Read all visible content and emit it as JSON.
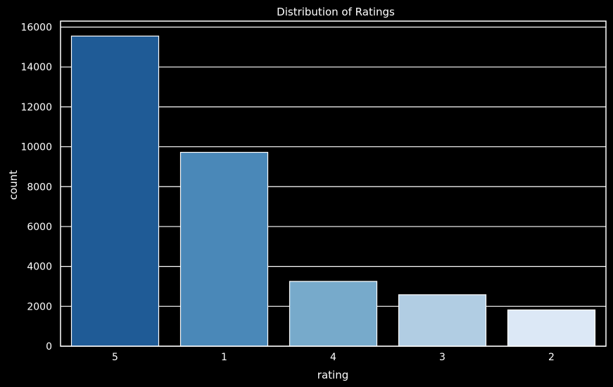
{
  "chart_data": {
    "type": "bar",
    "title": "Distribution of Ratings",
    "xlabel": "rating",
    "ylabel": "count",
    "categories": [
      "5",
      "1",
      "4",
      "3",
      "2"
    ],
    "values": [
      15550,
      9720,
      3250,
      2580,
      1820
    ],
    "ylim": [
      0,
      16300
    ],
    "yticks": [
      0,
      2000,
      4000,
      6000,
      8000,
      10000,
      12000,
      14000,
      16000
    ],
    "grid": true,
    "legend": "none",
    "colors": {
      "background": "#000000",
      "grid": "#ffffff",
      "text": "#ffffff",
      "bars": [
        "#1f5b96",
        "#4a88b8",
        "#77aacb",
        "#b1cde3",
        "#dce8f6"
      ],
      "bar_edge": "#ffffff"
    }
  }
}
